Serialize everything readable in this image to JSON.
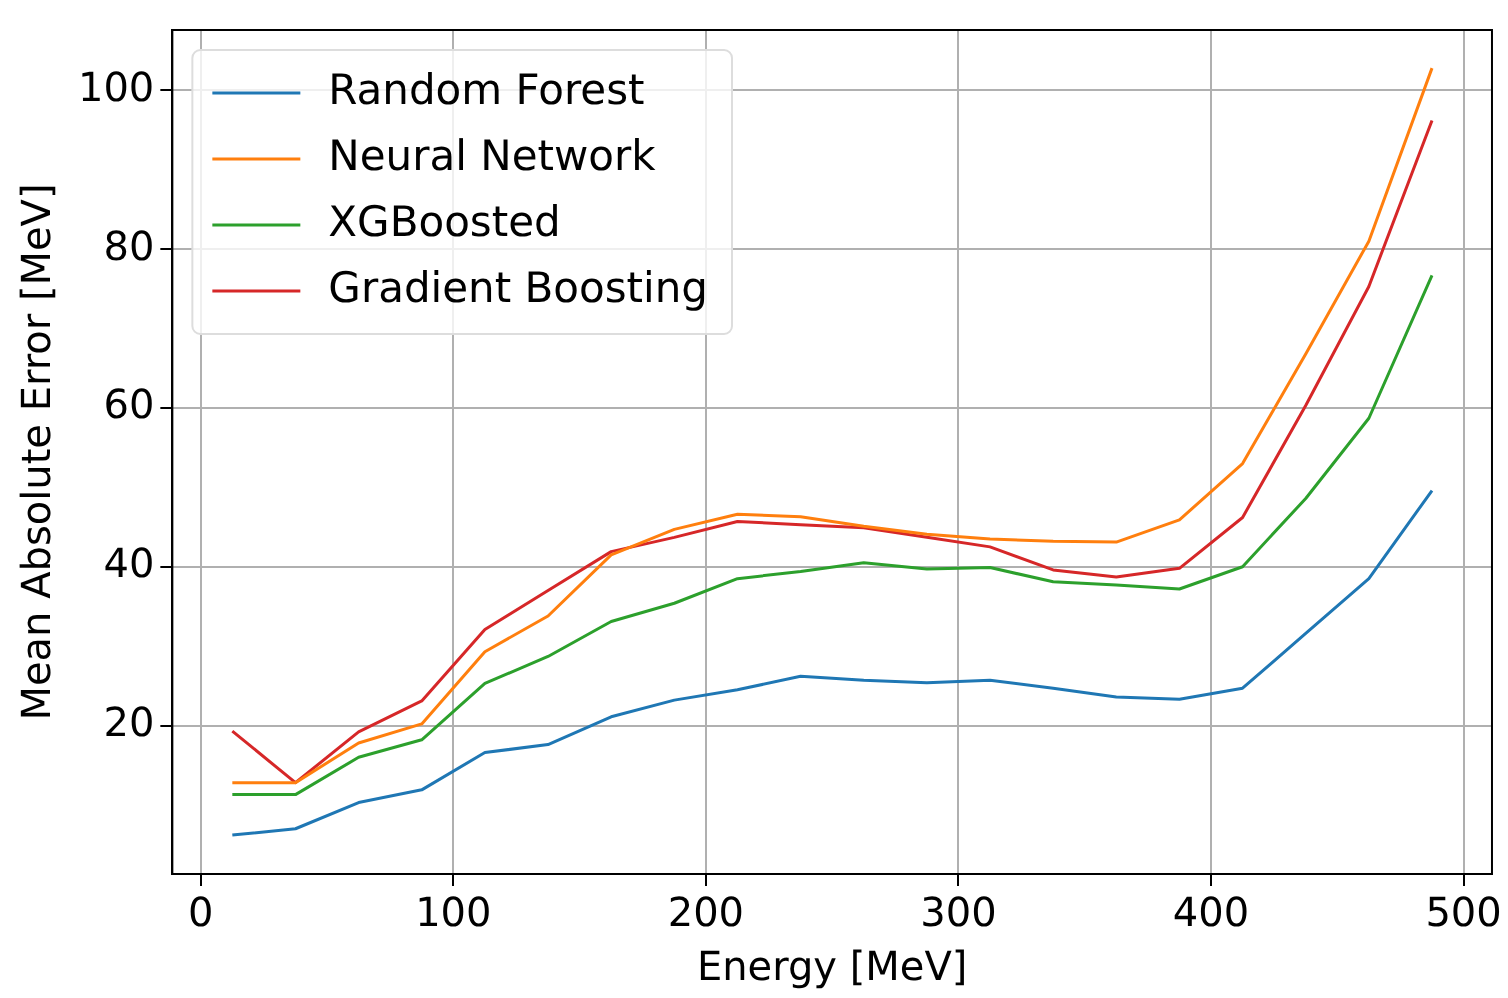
{
  "chart_data": {
    "type": "line",
    "xlabel": "Energy [MeV]",
    "ylabel": "Mean Absolute Error [MeV]",
    "x": [
      12.5,
      37.5,
      62.5,
      87.5,
      112.5,
      137.5,
      162.5,
      187.5,
      212.5,
      237.5,
      262.5,
      287.5,
      312.5,
      337.5,
      362.5,
      387.5,
      412.5,
      437.5,
      462.5,
      487.5
    ],
    "series": [
      {
        "name": "Random Forest",
        "color": "#1f77b4",
        "values": [
          6.2,
          7.0,
          10.3,
          11.9,
          16.6,
          17.6,
          21.1,
          23.2,
          24.5,
          26.2,
          25.7,
          25.4,
          25.7,
          24.7,
          23.6,
          23.3,
          24.7,
          31.6,
          38.5,
          49.6
        ]
      },
      {
        "name": "Neural Network",
        "color": "#ff7f0e",
        "values": [
          12.8,
          12.8,
          17.8,
          20.2,
          29.3,
          33.8,
          41.5,
          44.7,
          46.6,
          46.3,
          45.1,
          44.1,
          43.5,
          43.2,
          43.1,
          45.9,
          53.0,
          66.8,
          81.0,
          102.8
        ]
      },
      {
        "name": "XGBoosted",
        "color": "#2ca02c",
        "values": [
          11.3,
          11.3,
          16.0,
          18.2,
          25.3,
          28.7,
          33.1,
          35.4,
          38.5,
          39.4,
          40.5,
          39.7,
          39.9,
          38.1,
          37.7,
          37.2,
          40.0,
          48.6,
          58.7,
          76.7
        ]
      },
      {
        "name": "Gradient Boosting",
        "color": "#d62728",
        "values": [
          19.3,
          12.8,
          19.2,
          23.1,
          32.1,
          37.0,
          41.9,
          43.7,
          45.7,
          45.3,
          44.9,
          43.7,
          42.5,
          39.6,
          38.7,
          39.8,
          46.2,
          60.3,
          75.3,
          96.2
        ]
      }
    ],
    "xlim": [
      -11.25,
      511.25
    ],
    "xticks": [
      0,
      100,
      200,
      300,
      400,
      500
    ],
    "ylim": [
      1.3,
      107.6
    ],
    "yticks": [
      20,
      40,
      60,
      80,
      100
    ],
    "grid": true,
    "legend": "top left",
    "marker": "none",
    "line_style": "solid"
  }
}
